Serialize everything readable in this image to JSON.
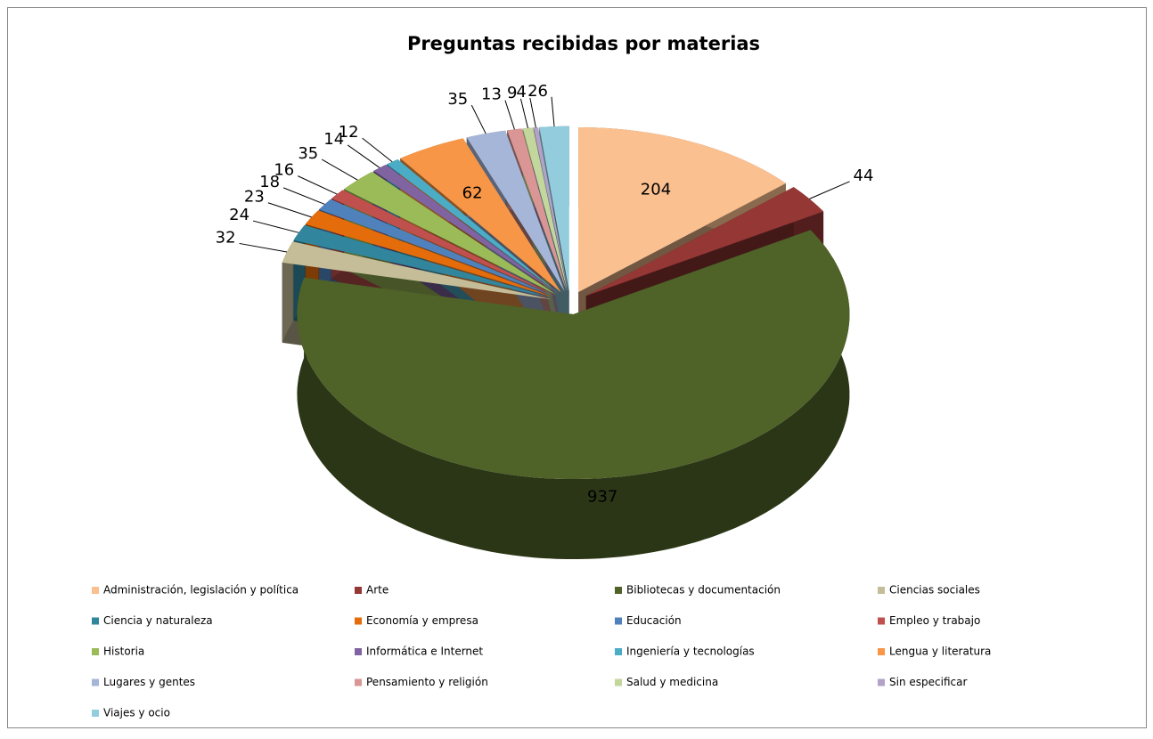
{
  "chart_data": {
    "type": "pie3d",
    "title": "Preguntas recibidas por materias",
    "categories": [
      "Administración, legislación y política",
      "Arte",
      "Bibliotecas y documentación",
      "Ciencias sociales",
      "Ciencia y naturaleza",
      "Economía y empresa",
      "Educación",
      "Empleo y trabajo",
      "Historia",
      "Informática e Internet",
      "Ingeniería y tecnologías",
      "Lengua y literatura",
      "Lugares y gentes",
      "Pensamiento y religión",
      "Salud y medicina",
      "Sin especificar",
      "Viajes y ocio"
    ],
    "values": [
      204,
      44,
      937,
      32,
      24,
      23,
      18,
      16,
      35,
      14,
      12,
      62,
      35,
      13,
      9,
      4,
      26
    ],
    "colors": [
      "#FAC090",
      "#953735",
      "#4F6228",
      "#C4BD97",
      "#31859C",
      "#E46C0A",
      "#4F81BD",
      "#C0504D",
      "#9BBB59",
      "#8064A2",
      "#4BACC6",
      "#F79646",
      "#A6B6D8",
      "#D99694",
      "#C3D69B",
      "#B3A2C7",
      "#93CDDD"
    ],
    "legend": "bottom"
  }
}
